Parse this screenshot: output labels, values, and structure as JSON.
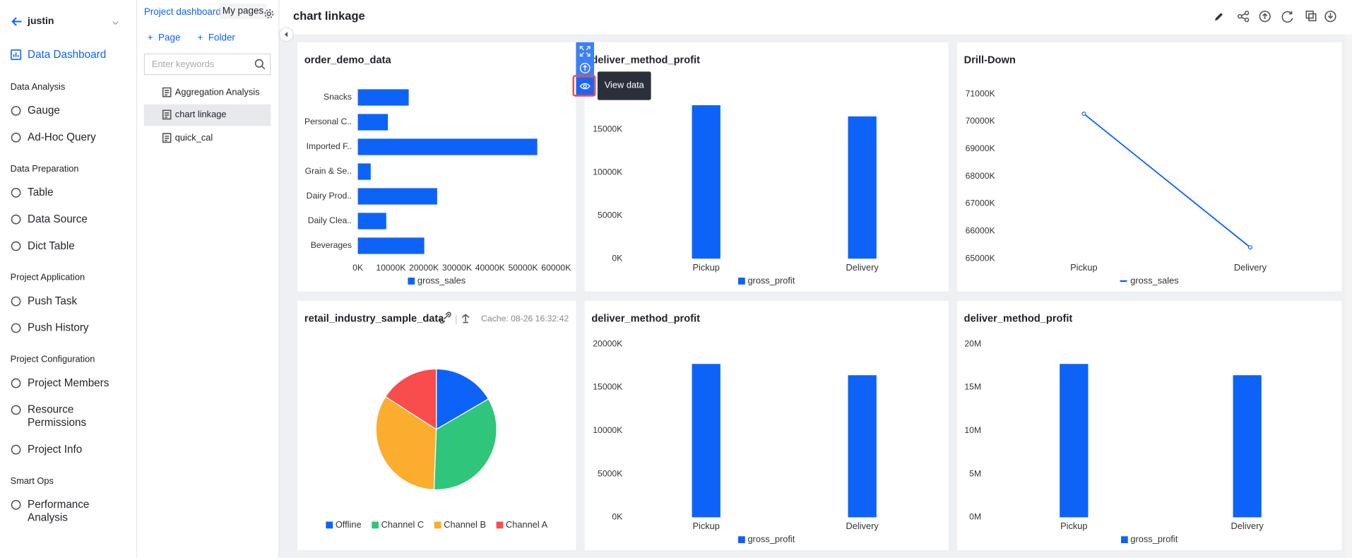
{
  "sidebar": {
    "user": "justin",
    "active": "Data Dashboard",
    "sections": [
      {
        "title": "Data Analysis",
        "items": [
          "Gauge",
          "Ad-Hoc Query"
        ]
      },
      {
        "title": "Data Preparation",
        "items": [
          "Table",
          "Data Source",
          "Dict Table"
        ]
      },
      {
        "title": "Project Application",
        "items": [
          "Push Task",
          "Push History"
        ]
      },
      {
        "title": "Project Configuration",
        "items": [
          "Project Members",
          "Resource Permissions",
          "Project Info"
        ]
      },
      {
        "title": "Smart Ops",
        "items": [
          "Performance Analysis"
        ]
      }
    ]
  },
  "pages_panel": {
    "tabs": [
      "Project dashboard",
      "My pages"
    ],
    "actions": [
      "Page",
      "Folder"
    ],
    "search_placeholder": "Enter keywords",
    "pages": [
      "Aggregation Analysis",
      "chart linkage",
      "quick_cal"
    ]
  },
  "header": {
    "title": "chart linkage"
  },
  "toolbar": {
    "tooltip": "View data"
  },
  "chart_data": [
    {
      "type": "bar",
      "orientation": "horizontal",
      "title": "order_demo_data",
      "categories": [
        "Snacks",
        "Personal C..",
        "Imported F..",
        "Grain & Se..",
        "Dairy Prod..",
        "Daily Clea..",
        "Beverages"
      ],
      "series": [
        {
          "name": "gross_sales",
          "color": "#0d63f8",
          "values": [
            15400000,
            9100000,
            54300000,
            3900000,
            24000000,
            8600000,
            20100000
          ]
        }
      ],
      "xlim": [
        0,
        60000000
      ],
      "xticks": [
        {
          "value": 0,
          "label": "0K"
        },
        {
          "value": 10000000,
          "label": "10000K"
        },
        {
          "value": 20000000,
          "label": "20000K"
        },
        {
          "value": 30000000,
          "label": "30000K"
        },
        {
          "value": 40000000,
          "label": "40000K"
        },
        {
          "value": 50000000,
          "label": "50000K"
        },
        {
          "value": 60000000,
          "label": "60000K"
        }
      ]
    },
    {
      "type": "bar",
      "title": "deliver_method_profit",
      "categories": [
        "Pickup",
        "Delivery"
      ],
      "series": [
        {
          "name": "gross_profit",
          "color": "#0d63f8",
          "values": [
            17800000,
            16500000
          ]
        }
      ],
      "ylim": [
        0,
        20000000
      ],
      "yticks": [
        {
          "value": 0,
          "label": "0K"
        },
        {
          "value": 5000000,
          "label": "5000K"
        },
        {
          "value": 10000000,
          "label": "10000K"
        },
        {
          "value": 15000000,
          "label": "15000K"
        }
      ]
    },
    {
      "type": "line",
      "title": "Drill-Down",
      "categories": [
        "Pickup",
        "Delivery"
      ],
      "series": [
        {
          "name": "gross_sales",
          "color": "#0d63f8",
          "values": [
            70280000,
            65410000
          ]
        }
      ],
      "ylim": [
        65000000,
        71000000
      ],
      "yticks": [
        {
          "value": 65000000,
          "label": "65000K"
        },
        {
          "value": 66000000,
          "label": "66000K"
        },
        {
          "value": 67000000,
          "label": "67000K"
        },
        {
          "value": 68000000,
          "label": "68000K"
        },
        {
          "value": 69000000,
          "label": "69000K"
        },
        {
          "value": 70000000,
          "label": "70000K"
        },
        {
          "value": 71000000,
          "label": "71000K"
        }
      ]
    },
    {
      "type": "pie",
      "title": "retail_industry_sample_data",
      "cache": "Cache: 08-26 16:32:42",
      "categories": [
        "Offline",
        "Channel C",
        "Channel B",
        "Channel A"
      ],
      "values": [
        16.6,
        34,
        33.5,
        15.9
      ],
      "colors": [
        "#0d63f8",
        "#2fc57b",
        "#fbad2e",
        "#f94c4c"
      ]
    },
    {
      "type": "bar",
      "title": "deliver_method_profit",
      "categories": [
        "Pickup",
        "Delivery"
      ],
      "series": [
        {
          "name": "gross_profit",
          "color": "#0d63f8",
          "values": [
            17700000,
            16400000
          ]
        }
      ],
      "ylim": [
        0,
        20000000
      ],
      "yticks": [
        {
          "value": 0,
          "label": "0K"
        },
        {
          "value": 5000000,
          "label": "5000K"
        },
        {
          "value": 10000000,
          "label": "10000K"
        },
        {
          "value": 15000000,
          "label": "15000K"
        },
        {
          "value": 20000000,
          "label": "20000K"
        }
      ]
    },
    {
      "type": "bar",
      "title": "deliver_method_profit",
      "categories": [
        "Pickup",
        "Delivery"
      ],
      "series": [
        {
          "name": "gross_profit",
          "color": "#0d63f8",
          "values": [
            17700000,
            16400000
          ]
        }
      ],
      "ylim": [
        0,
        20000000
      ],
      "yticks": [
        {
          "value": 0,
          "label": "0M"
        },
        {
          "value": 5000000,
          "label": "5M"
        },
        {
          "value": 10000000,
          "label": "10M"
        },
        {
          "value": 15000000,
          "label": "15M"
        },
        {
          "value": 20000000,
          "label": "20M"
        }
      ]
    }
  ]
}
